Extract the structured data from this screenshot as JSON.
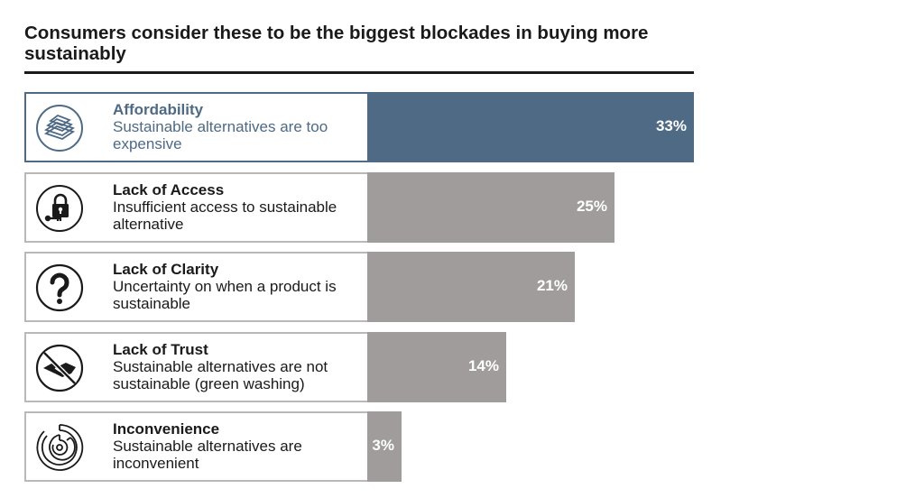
{
  "title": "Consumers consider these to be the biggest blockades in buying more sustainably",
  "colors": {
    "highlight": "#4e6a84",
    "bar": "#a09c9c",
    "border": "#b9b9b9"
  },
  "chart_data": {
    "type": "bar",
    "orientation": "horizontal",
    "title": "Consumers consider these to be the biggest blockades in buying more sustainably",
    "categories": [
      "Affordability",
      "Lack of Access",
      "Lack of Clarity",
      "Lack of Trust",
      "Inconvenience"
    ],
    "values": [
      33,
      25,
      21,
      14,
      3
    ],
    "unit": "%",
    "xlim": [
      0,
      33
    ],
    "grid": false,
    "items": [
      {
        "name": "Affordability",
        "description": "Sustainable alternatives are too expensive",
        "value": 33,
        "label": "33%",
        "icon": "money-stack-icon",
        "highlight": true
      },
      {
        "name": "Lack of Access",
        "description": "Insufficient access to sustainable alternative",
        "value": 25,
        "label": "25%",
        "icon": "padlock-key-icon",
        "highlight": false
      },
      {
        "name": "Lack of Clarity",
        "description": "Uncertainty on when a product is sustainable",
        "value": 21,
        "label": "21%",
        "icon": "question-mark-icon",
        "highlight": false
      },
      {
        "name": "Lack of Trust",
        "description": "Sustainable alternatives are not sustainable (green washing)",
        "value": 14,
        "label": "14%",
        "icon": "no-handshake-icon",
        "highlight": false
      },
      {
        "name": "Inconvenience",
        "description": "Sustainable alternatives are inconvenient",
        "value": 3,
        "label": "3%",
        "icon": "maze-icon",
        "highlight": false
      }
    ]
  }
}
